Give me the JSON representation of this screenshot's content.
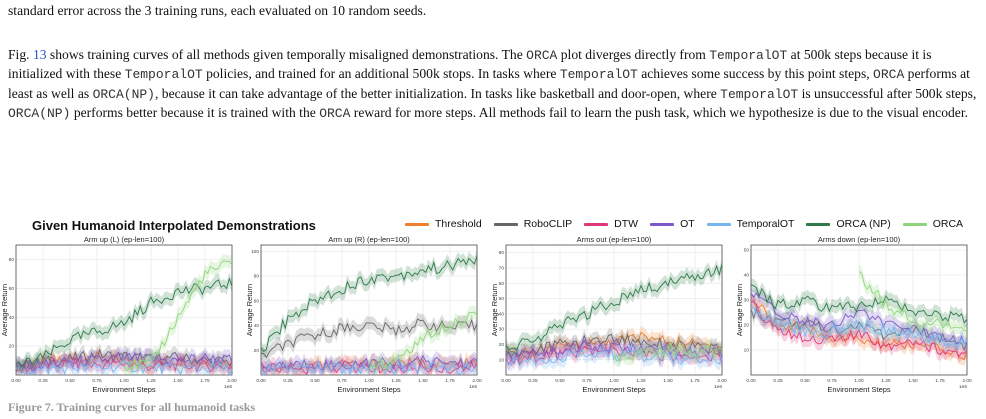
{
  "caption_top": "standard error across the 3 training runs, each evaluated on 10 random seeds.",
  "paragraph": [
    {
      "t": "text",
      "v": "Fig. "
    },
    {
      "t": "ref",
      "v": "13"
    },
    {
      "t": "text",
      "v": " shows training curves of all methods given temporally misaligned demonstrations. The "
    },
    {
      "t": "code",
      "v": "ORCA"
    },
    {
      "t": "text",
      "v": " plot diverges directly from "
    },
    {
      "t": "code",
      "v": "TemporalOT"
    },
    {
      "t": "text",
      "v": " at 500k steps because it is initialized with these "
    },
    {
      "t": "code",
      "v": "TemporalOT"
    },
    {
      "t": "text",
      "v": " policies, and trained for an additional 500k stops. In tasks where "
    },
    {
      "t": "code",
      "v": "TemporalOT"
    },
    {
      "t": "text",
      "v": " achieves some success by this point steps, "
    },
    {
      "t": "code",
      "v": "ORCA"
    },
    {
      "t": "text",
      "v": " performs at least as well as "
    },
    {
      "t": "code",
      "v": "ORCA(NP)"
    },
    {
      "t": "text",
      "v": ", because it can take advantage of the better initialization. In tasks like basketball and door-open, where "
    },
    {
      "t": "code",
      "v": "TemporalOT"
    },
    {
      "t": "text",
      "v": " is unsuccessful after 500k steps, "
    },
    {
      "t": "code",
      "v": "ORCA(NP)"
    },
    {
      "t": "text",
      "v": " performs better because it is trained with the "
    },
    {
      "t": "code",
      "v": "ORCA"
    },
    {
      "t": "text",
      "v": " reward for more steps. All methods fail to learn the push task, which we hypothesize is due to the visual encoder."
    }
  ],
  "figure": {
    "title": "Given Humanoid Interpolated Demonstrations",
    "legend": [
      {
        "name": "Threshold",
        "color": "#f07f2e"
      },
      {
        "name": "RoboCLIP",
        "color": "#666666"
      },
      {
        "name": "DTW",
        "color": "#e0367a"
      },
      {
        "name": "OT",
        "color": "#7b59c9"
      },
      {
        "name": "TemporalOT",
        "color": "#76b6f0"
      },
      {
        "name": "ORCA (NP)",
        "color": "#2f7a4a"
      },
      {
        "name": "ORCA",
        "color": "#8fd67a"
      }
    ]
  },
  "chart_data": [
    {
      "type": "line",
      "title": "Arm up (L) (ep-len=100)",
      "xlabel": "Environment Steps",
      "ylabel": "Average Return",
      "xlim": [
        0,
        2
      ],
      "ylim": [
        0,
        90
      ],
      "xticks": [
        "0.00",
        "0.25",
        "0.50",
        "0.75",
        "1.00",
        "1.25",
        "1.50",
        "1.75",
        "2.00"
      ],
      "xscale_label": "1e6",
      "yticks": [
        20,
        40,
        60,
        80
      ],
      "x": [
        0,
        0.25,
        0.5,
        0.75,
        1.0,
        1.25,
        1.5,
        1.75,
        2.0
      ],
      "series": [
        {
          "name": "Threshold",
          "values": [
            5,
            8,
            10,
            12,
            9,
            8,
            10,
            9,
            8
          ]
        },
        {
          "name": "RoboCLIP",
          "values": [
            6,
            9,
            11,
            14,
            13,
            11,
            12,
            10,
            9
          ]
        },
        {
          "name": "DTW",
          "values": [
            4,
            6,
            8,
            7,
            8,
            6,
            7,
            6,
            6
          ]
        },
        {
          "name": "OT",
          "values": [
            5,
            7,
            9,
            10,
            12,
            11,
            10,
            12,
            10
          ]
        },
        {
          "name": "TemporalOT",
          "values": [
            3,
            4,
            5,
            5,
            6,
            5,
            4,
            5,
            4
          ]
        },
        {
          "name": "ORCA (NP)",
          "values": [
            6,
            12,
            24,
            30,
            36,
            50,
            58,
            60,
            64
          ]
        },
        {
          "name": "ORCA",
          "values": [
            null,
            null,
            null,
            null,
            6,
            8,
            40,
            70,
            78
          ]
        }
      ]
    },
    {
      "type": "line",
      "title": "Arm up (R) (ep-len=100)",
      "xlabel": "Environment Steps",
      "ylabel": "Average Return",
      "xlim": [
        0,
        2
      ],
      "ylim": [
        0,
        105
      ],
      "xticks": [
        "0.00",
        "0.25",
        "0.50",
        "0.75",
        "1.00",
        "1.25",
        "1.50",
        "1.75",
        "2.00"
      ],
      "xscale_label": "1e6",
      "yticks": [
        20,
        40,
        60,
        80,
        100
      ],
      "x": [
        0,
        0.25,
        0.5,
        0.75,
        1.0,
        1.25,
        1.5,
        1.75,
        2.0
      ],
      "series": [
        {
          "name": "Threshold",
          "values": [
            6,
            7,
            8,
            9,
            8,
            10,
            9,
            8,
            9
          ]
        },
        {
          "name": "RoboCLIP",
          "values": [
            15,
            25,
            32,
            38,
            40,
            36,
            42,
            38,
            40
          ]
        },
        {
          "name": "DTW",
          "values": [
            5,
            6,
            5,
            7,
            6,
            5,
            6,
            5,
            6
          ]
        },
        {
          "name": "OT",
          "values": [
            6,
            8,
            9,
            8,
            10,
            9,
            11,
            10,
            10
          ]
        },
        {
          "name": "TemporalOT",
          "values": [
            4,
            5,
            6,
            5,
            6,
            5,
            6,
            5,
            5
          ]
        },
        {
          "name": "ORCA (NP)",
          "values": [
            20,
            45,
            60,
            70,
            78,
            80,
            85,
            88,
            94
          ]
        },
        {
          "name": "ORCA",
          "values": [
            null,
            null,
            null,
            null,
            8,
            12,
            30,
            42,
            50
          ]
        }
      ]
    },
    {
      "type": "line",
      "title": "Arms out (ep-len=100)",
      "xlabel": "Environment Steps",
      "ylabel": "Average Return",
      "xlim": [
        0,
        2
      ],
      "ylim": [
        0,
        85
      ],
      "xticks": [
        "0.00",
        "0.25",
        "0.50",
        "0.75",
        "1.00",
        "1.25",
        "1.50",
        "1.75",
        "2.00"
      ],
      "xscale_label": "1e6",
      "yticks": [
        10,
        20,
        30,
        40,
        50,
        60,
        70,
        80
      ],
      "x": [
        0,
        0.25,
        0.5,
        0.75,
        1.0,
        1.25,
        1.5,
        1.75,
        2.0
      ],
      "series": [
        {
          "name": "Threshold",
          "values": [
            12,
            15,
            18,
            20,
            22,
            25,
            22,
            20,
            18
          ]
        },
        {
          "name": "RoboCLIP",
          "values": [
            14,
            16,
            20,
            22,
            24,
            22,
            20,
            18,
            16
          ]
        },
        {
          "name": "DTW",
          "values": [
            10,
            12,
            14,
            16,
            15,
            14,
            13,
            12,
            12
          ]
        },
        {
          "name": "OT",
          "values": [
            12,
            14,
            16,
            20,
            18,
            17,
            16,
            15,
            14
          ]
        },
        {
          "name": "TemporalOT",
          "values": [
            8,
            10,
            12,
            14,
            13,
            12,
            11,
            10,
            10
          ]
        },
        {
          "name": "ORCA (NP)",
          "values": [
            18,
            22,
            32,
            40,
            48,
            55,
            60,
            65,
            70
          ]
        },
        {
          "name": "ORCA",
          "values": [
            null,
            null,
            null,
            null,
            12,
            14,
            16,
            15,
            16
          ]
        }
      ]
    },
    {
      "type": "line",
      "title": "Arms down (ep-len=100)",
      "xlabel": "Environment Steps",
      "ylabel": "Average Return",
      "xlim": [
        0,
        2
      ],
      "ylim": [
        0,
        52
      ],
      "xticks": [
        "0.00",
        "0.25",
        "0.50",
        "0.75",
        "1.00",
        "1.25",
        "1.50",
        "1.75",
        "2.00"
      ],
      "xscale_label": "1e6",
      "yticks": [
        10,
        20,
        30,
        40,
        50
      ],
      "x": [
        0,
        0.25,
        0.5,
        0.75,
        1.0,
        1.25,
        1.5,
        1.75,
        2.0
      ],
      "series": [
        {
          "name": "Threshold",
          "values": [
            30,
            20,
            18,
            15,
            14,
            12,
            12,
            10,
            8
          ]
        },
        {
          "name": "RoboCLIP",
          "values": [
            25,
            22,
            20,
            18,
            20,
            16,
            18,
            15,
            12
          ]
        },
        {
          "name": "DTW",
          "values": [
            28,
            18,
            15,
            14,
            16,
            12,
            14,
            10,
            8
          ]
        },
        {
          "name": "OT",
          "values": [
            32,
            25,
            22,
            20,
            26,
            20,
            18,
            16,
            14
          ]
        },
        {
          "name": "TemporalOT",
          "values": [
            26,
            20,
            18,
            17,
            20,
            18,
            16,
            14,
            12
          ]
        },
        {
          "name": "ORCA (NP)",
          "values": [
            35,
            28,
            30,
            26,
            28,
            30,
            26,
            24,
            22
          ]
        },
        {
          "name": "ORCA",
          "values": [
            null,
            null,
            null,
            null,
            40,
            28,
            22,
            20,
            18
          ]
        }
      ]
    }
  ],
  "bottom_caption": "Figure 7. Training curves for all humanoid tasks"
}
